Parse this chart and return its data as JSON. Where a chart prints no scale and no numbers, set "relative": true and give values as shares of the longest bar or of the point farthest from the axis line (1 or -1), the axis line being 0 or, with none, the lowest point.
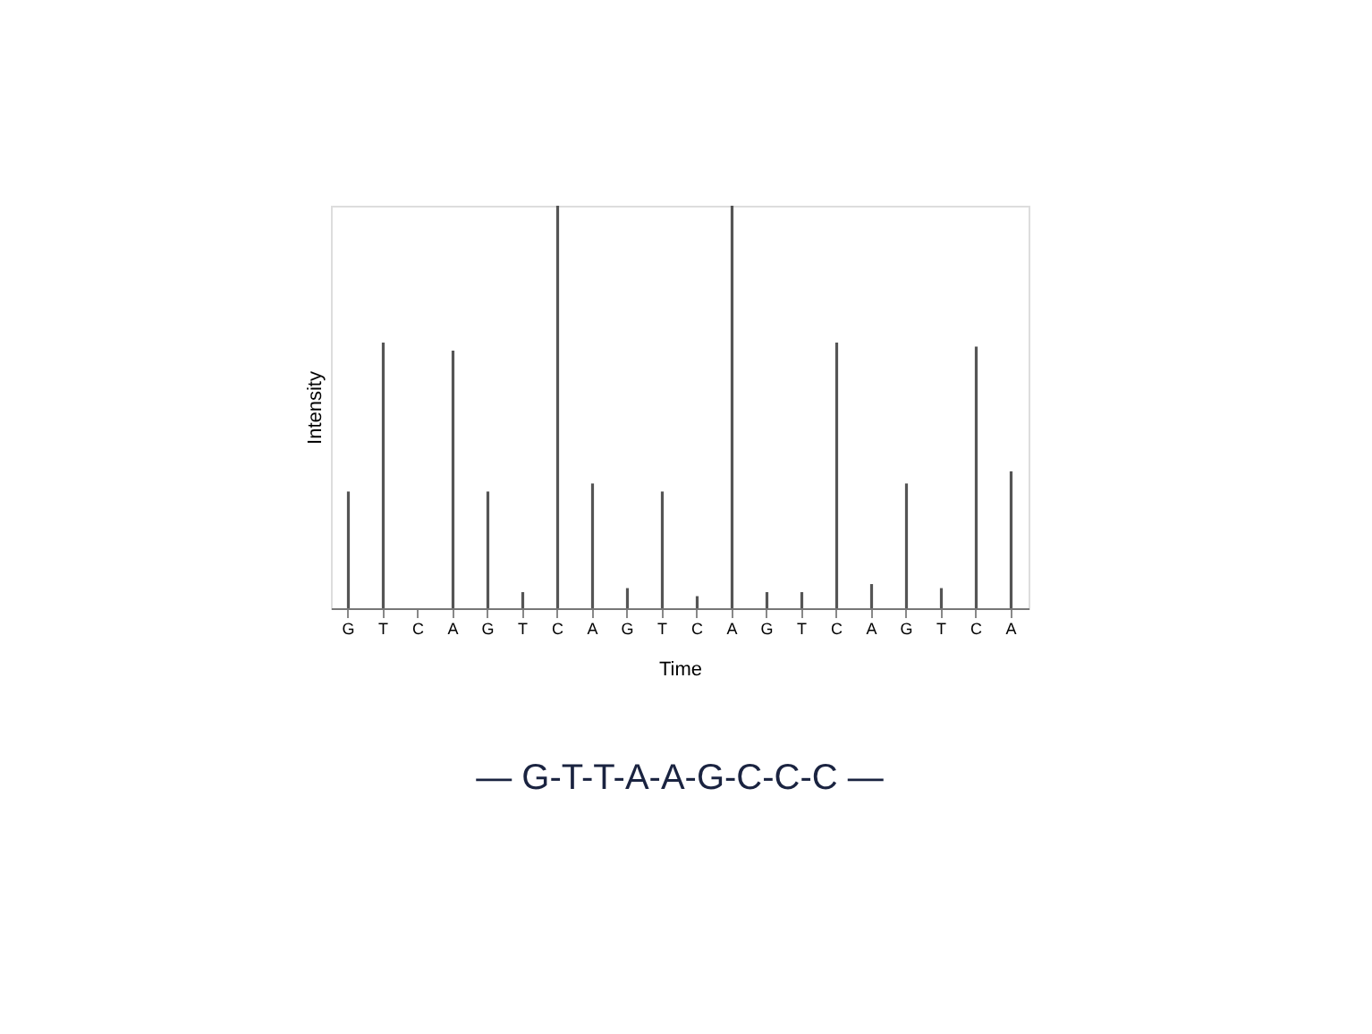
{
  "chart_data": {
    "type": "bar",
    "relative": true,
    "xlabel": "Time",
    "ylabel": "Intensity",
    "color": "#555555",
    "grid": false,
    "categories": [
      "G",
      "T",
      "C",
      "A",
      "G",
      "T",
      "C",
      "A",
      "G",
      "T",
      "C",
      "A",
      "G",
      "T",
      "C",
      "A",
      "G",
      "T",
      "C",
      "A"
    ],
    "values": [
      0.29,
      0.66,
      0,
      0.64,
      0.29,
      0.04,
      1,
      0.31,
      0.05,
      0.29,
      0.03,
      1,
      0.04,
      0.04,
      0.66,
      0.06,
      0.31,
      0.05,
      0.65,
      0.34
    ],
    "annotations": [
      "— G-T-T-A-A-G-C-C-C —"
    ]
  }
}
